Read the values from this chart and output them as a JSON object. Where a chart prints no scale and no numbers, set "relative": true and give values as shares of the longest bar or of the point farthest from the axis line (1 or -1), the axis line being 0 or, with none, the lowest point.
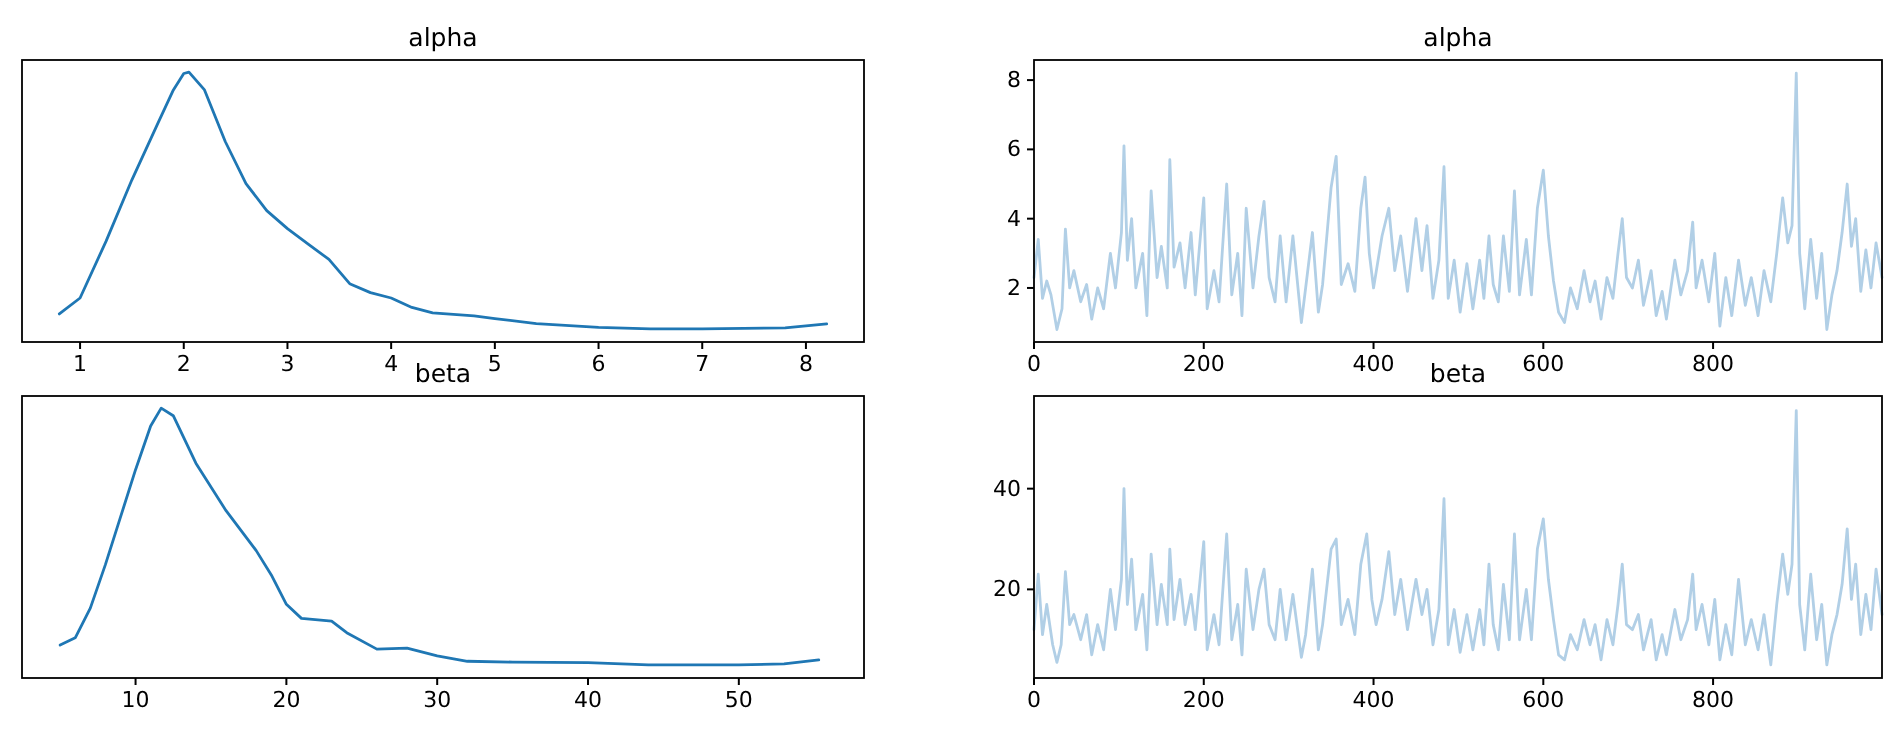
{
  "chart_data": [
    {
      "type": "line",
      "title": "alpha",
      "relative": true,
      "tick_labels": "x",
      "xlim": [
        0.44,
        8.56
      ],
      "xticks": [
        1,
        2,
        3,
        4,
        5,
        6,
        7,
        8
      ],
      "x": [
        0.8,
        1.0,
        1.25,
        1.5,
        1.75,
        1.9,
        2.0,
        2.05,
        2.2,
        2.4,
        2.6,
        2.8,
        3.0,
        3.2,
        3.4,
        3.6,
        3.8,
        4.0,
        4.2,
        4.4,
        4.8,
        5.0,
        5.4,
        6.0,
        6.5,
        7.0,
        7.8,
        8.2
      ],
      "series": [
        {
          "color": "#1f77b4",
          "values": [
            0.104,
            0.163,
            0.373,
            0.601,
            0.81,
            0.934,
            0.995,
            1,
            0.934,
            0.743,
            0.587,
            0.487,
            0.42,
            0.363,
            0.306,
            0.216,
            0.183,
            0.163,
            0.128,
            0.108,
            0.097,
            0.087,
            0.068,
            0.054,
            0.049,
            0.049,
            0.052,
            0.067
          ]
        }
      ]
    },
    {
      "type": "line",
      "title": "alpha",
      "xlim": [
        0,
        999
      ],
      "xticks": [
        0,
        200,
        400,
        600,
        800
      ],
      "ylim": [
        0.44,
        8.58
      ],
      "yticks": [
        2,
        4,
        6,
        8
      ],
      "x": [
        0,
        5,
        10,
        15,
        20,
        27,
        33,
        37,
        42,
        47,
        55,
        62,
        68,
        75,
        82,
        90,
        96,
        103,
        106,
        110,
        115,
        120,
        128,
        133,
        138,
        145,
        150,
        157,
        160,
        165,
        172,
        178,
        185,
        190,
        200,
        204,
        212,
        218,
        227,
        233,
        240,
        245,
        250,
        258,
        265,
        271,
        277,
        284,
        290,
        297,
        305,
        315,
        320,
        328,
        335,
        340,
        350,
        356,
        362,
        370,
        378,
        385,
        390,
        395,
        400,
        410,
        418,
        425,
        432,
        440,
        450,
        457,
        463,
        470,
        477,
        483,
        488,
        495,
        502,
        510,
        517,
        525,
        530,
        536,
        541,
        547,
        553,
        560,
        566,
        572,
        580,
        586,
        593,
        600,
        606,
        612,
        618,
        625,
        632,
        640,
        648,
        655,
        661,
        668,
        675,
        682,
        688,
        693,
        698,
        705,
        712,
        718,
        727,
        733,
        740,
        745,
        755,
        762,
        770,
        776,
        780,
        787,
        795,
        802,
        808,
        815,
        822,
        830,
        838,
        845,
        853,
        860,
        868,
        875,
        882,
        888,
        893,
        898,
        902,
        908,
        915,
        922,
        928,
        934,
        940,
        946,
        952,
        958,
        963,
        968,
        974,
        980,
        986,
        992,
        999
      ],
      "series": [
        {
          "color": "#b1cfe6",
          "values": [
            2.3,
            3.4,
            1.7,
            2.2,
            1.8,
            0.8,
            1.4,
            3.7,
            2.0,
            2.5,
            1.6,
            2.1,
            1.1,
            2.0,
            1.4,
            3.0,
            2.0,
            3.6,
            6.1,
            2.8,
            4.0,
            2.0,
            3.0,
            1.2,
            4.8,
            2.3,
            3.2,
            2.0,
            5.7,
            2.6,
            3.3,
            2.0,
            3.6,
            1.8,
            4.6,
            1.4,
            2.5,
            1.6,
            5.0,
            1.8,
            3.0,
            1.2,
            4.3,
            2.0,
            3.5,
            4.5,
            2.3,
            1.6,
            3.5,
            1.6,
            3.5,
            1.0,
            2.0,
            3.6,
            1.3,
            2.1,
            4.9,
            5.8,
            2.1,
            2.7,
            1.9,
            4.3,
            5.2,
            3.0,
            2.0,
            3.5,
            4.3,
            2.5,
            3.5,
            1.9,
            4.0,
            2.5,
            3.8,
            1.7,
            2.8,
            5.5,
            1.7,
            2.8,
            1.3,
            2.7,
            1.4,
            2.8,
            1.7,
            3.5,
            2.1,
            1.6,
            3.5,
            1.9,
            4.8,
            1.8,
            3.4,
            1.8,
            4.3,
            5.4,
            3.5,
            2.2,
            1.3,
            1.0,
            2.0,
            1.4,
            2.5,
            1.6,
            2.2,
            1.1,
            2.3,
            1.7,
            3.0,
            4.0,
            2.3,
            2.0,
            2.8,
            1.5,
            2.5,
            1.2,
            1.9,
            1.1,
            2.8,
            1.8,
            2.5,
            3.9,
            2.0,
            2.8,
            1.6,
            3.0,
            0.9,
            2.3,
            1.2,
            2.8,
            1.5,
            2.3,
            1.2,
            2.5,
            1.6,
            3.0,
            4.6,
            3.3,
            3.8,
            8.2,
            3.0,
            1.4,
            3.4,
            1.7,
            3.0,
            0.8,
            1.8,
            2.5,
            3.6,
            5.0,
            3.2,
            4.0,
            1.9,
            3.1,
            2.0,
            3.3,
            2.3
          ]
        }
      ]
    },
    {
      "type": "line",
      "title": "beta",
      "relative": true,
      "tick_labels": "x",
      "xlim": [
        2.47,
        58.3
      ],
      "xticks": [
        10,
        20,
        30,
        40,
        50
      ],
      "x": [
        5,
        6,
        7,
        8,
        9,
        10,
        11,
        11.7,
        12.5,
        14,
        16,
        18,
        19,
        20,
        21,
        23,
        24,
        26,
        28,
        30,
        32,
        35,
        40,
        44,
        50,
        53,
        55.3
      ],
      "series": [
        {
          "color": "#1f77b4",
          "values": [
            0.122,
            0.149,
            0.259,
            0.42,
            0.596,
            0.772,
            0.934,
            1,
            0.972,
            0.796,
            0.62,
            0.472,
            0.382,
            0.273,
            0.221,
            0.211,
            0.168,
            0.107,
            0.111,
            0.082,
            0.062,
            0.059,
            0.057,
            0.049,
            0.049,
            0.052,
            0.067
          ]
        }
      ]
    },
    {
      "type": "line",
      "title": "beta",
      "xlim": [
        0,
        999
      ],
      "xticks": [
        0,
        200,
        400,
        600,
        800
      ],
      "ylim": [
        2.4,
        58.4
      ],
      "yticks": [
        20,
        40
      ],
      "x": [
        0,
        5,
        10,
        15,
        22,
        27,
        32,
        37,
        42,
        47,
        55,
        62,
        68,
        75,
        82,
        90,
        96,
        103,
        106,
        110,
        115,
        120,
        128,
        133,
        138,
        145,
        150,
        157,
        160,
        165,
        172,
        178,
        185,
        190,
        200,
        204,
        212,
        218,
        227,
        233,
        240,
        245,
        250,
        258,
        265,
        271,
        277,
        284,
        290,
        297,
        305,
        315,
        320,
        328,
        335,
        340,
        350,
        356,
        362,
        370,
        378,
        385,
        392,
        398,
        403,
        410,
        418,
        425,
        432,
        440,
        450,
        457,
        463,
        470,
        477,
        483,
        488,
        495,
        502,
        510,
        517,
        525,
        530,
        536,
        541,
        547,
        553,
        560,
        566,
        572,
        580,
        586,
        593,
        600,
        606,
        612,
        618,
        625,
        632,
        640,
        648,
        655,
        661,
        668,
        675,
        682,
        688,
        693,
        698,
        705,
        712,
        718,
        727,
        733,
        740,
        745,
        755,
        762,
        770,
        776,
        780,
        787,
        795,
        802,
        808,
        815,
        822,
        830,
        838,
        845,
        853,
        860,
        868,
        875,
        882,
        888,
        893,
        898,
        902,
        908,
        915,
        922,
        928,
        934,
        940,
        946,
        952,
        958,
        963,
        968,
        974,
        980,
        986,
        992,
        999
      ],
      "series": [
        {
          "color": "#b1cfe6",
          "values": [
            12,
            23,
            11,
            17,
            9,
            5.5,
            9,
            23.5,
            13,
            15,
            10,
            15,
            7,
            13,
            8,
            20,
            12,
            22,
            40,
            17,
            26,
            12,
            19,
            8,
            27,
            13,
            21,
            13,
            28,
            14,
            22,
            13,
            19,
            12,
            29.5,
            8,
            15,
            9,
            31,
            10,
            17,
            7,
            24,
            12,
            20,
            24,
            13,
            10,
            20,
            10,
            19,
            6.5,
            11,
            24,
            8,
            13,
            28,
            30,
            13,
            18,
            11,
            25,
            31,
            18,
            13,
            18,
            27.5,
            15,
            22,
            12,
            22,
            15,
            20,
            9,
            16,
            38,
            9,
            16,
            7.5,
            15,
            8,
            16,
            9,
            25,
            13,
            8,
            21,
            10,
            31,
            10,
            20,
            10,
            28,
            34,
            22,
            14,
            7,
            6,
            11,
            8,
            14,
            9,
            13,
            6,
            14,
            9,
            17,
            25,
            13,
            12,
            15,
            8,
            14,
            6,
            11,
            7,
            16,
            10,
            14,
            23,
            12,
            17,
            9,
            18,
            6,
            13,
            7,
            22,
            9,
            14,
            8,
            15,
            5,
            17,
            27,
            19,
            25,
            55.5,
            17,
            8,
            23,
            10,
            17,
            5,
            11,
            15,
            21,
            32,
            18,
            25,
            11,
            19,
            12,
            24,
            15
          ]
        }
      ]
    }
  ]
}
